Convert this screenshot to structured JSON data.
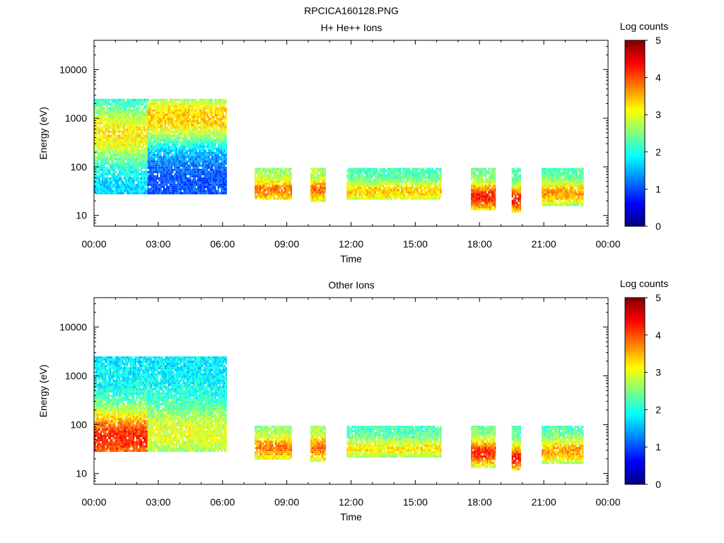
{
  "figure_title": "RPCICA160128.PNG",
  "colorbar": {
    "label": "Log counts",
    "min": 0,
    "max": 5,
    "ticks": [
      "0",
      "1",
      "2",
      "3",
      "4",
      "5"
    ]
  },
  "chart_data": [
    {
      "type": "heatmap",
      "title": "H+ He++ Ions",
      "xlabel": "Time",
      "ylabel": "Energy (eV)",
      "x_ticks": [
        "00:00",
        "03:00",
        "06:00",
        "09:00",
        "12:00",
        "15:00",
        "18:00",
        "21:00",
        "00:00"
      ],
      "xlim_hours": [
        0,
        24
      ],
      "y_ticks": [
        "10",
        "100",
        "1000",
        "10000"
      ],
      "y_scale": "log",
      "ylim": [
        6,
        40000
      ],
      "color_scale": "log counts 0-5 (jet)",
      "blocks": [
        {
          "t_start": 0.0,
          "t_end": 2.5,
          "e_low": 28,
          "e_high": 2500,
          "peak_energy": 500,
          "peak_level": 3.2,
          "base_level": 1.6
        },
        {
          "t_start": 2.5,
          "t_end": 6.2,
          "e_low": 28,
          "e_high": 2500,
          "peak_energy": 1100,
          "peak_level": 3.4,
          "base_level": 1.0
        },
        {
          "t_start": 7.5,
          "t_end": 9.2,
          "e_low": 22,
          "e_high": 95,
          "peak_energy": 35,
          "peak_level": 3.8,
          "base_level": 2.6
        },
        {
          "t_start": 10.1,
          "t_end": 10.8,
          "e_low": 20,
          "e_high": 95,
          "peak_energy": 35,
          "peak_level": 3.8,
          "base_level": 2.6
        },
        {
          "t_start": 11.8,
          "t_end": 16.2,
          "e_low": 22,
          "e_high": 95,
          "peak_energy": 33,
          "peak_level": 3.4,
          "base_level": 2.2
        },
        {
          "t_start": 17.6,
          "t_end": 18.7,
          "e_low": 14,
          "e_high": 95,
          "peak_energy": 25,
          "peak_level": 4.3,
          "base_level": 2.4
        },
        {
          "t_start": 19.5,
          "t_end": 19.9,
          "e_low": 12,
          "e_high": 95,
          "peak_energy": 22,
          "peak_level": 4.3,
          "base_level": 2.2
        },
        {
          "t_start": 20.9,
          "t_end": 22.8,
          "e_low": 16,
          "e_high": 95,
          "peak_energy": 30,
          "peak_level": 3.6,
          "base_level": 2.2
        }
      ]
    },
    {
      "type": "heatmap",
      "title": "Other Ions",
      "xlabel": "Time",
      "ylabel": "Energy (eV)",
      "x_ticks": [
        "00:00",
        "03:00",
        "06:00",
        "09:00",
        "12:00",
        "15:00",
        "18:00",
        "21:00",
        "00:00"
      ],
      "xlim_hours": [
        0,
        24
      ],
      "y_ticks": [
        "10",
        "100",
        "1000",
        "10000"
      ],
      "y_scale": "log",
      "ylim": [
        6,
        40000
      ],
      "color_scale": "log counts 0-5 (jet)",
      "blocks": [
        {
          "t_start": 0.0,
          "t_end": 2.5,
          "e_low": 28,
          "e_high": 2500,
          "peak_energy": 55,
          "peak_level": 4.2,
          "base_level": 1.8
        },
        {
          "t_start": 2.5,
          "t_end": 6.2,
          "e_low": 28,
          "e_high": 2500,
          "peak_energy": 70,
          "peak_level": 3.0,
          "base_level": 1.8
        },
        {
          "t_start": 7.5,
          "t_end": 9.2,
          "e_low": 20,
          "e_high": 95,
          "peak_energy": 35,
          "peak_level": 3.8,
          "base_level": 2.6
        },
        {
          "t_start": 10.1,
          "t_end": 10.8,
          "e_low": 18,
          "e_high": 95,
          "peak_energy": 35,
          "peak_level": 3.8,
          "base_level": 2.6
        },
        {
          "t_start": 11.8,
          "t_end": 16.2,
          "e_low": 22,
          "e_high": 95,
          "peak_energy": 34,
          "peak_level": 3.2,
          "base_level": 2.2
        },
        {
          "t_start": 17.6,
          "t_end": 18.7,
          "e_low": 14,
          "e_high": 95,
          "peak_energy": 28,
          "peak_level": 4.2,
          "base_level": 2.4
        },
        {
          "t_start": 19.5,
          "t_end": 19.9,
          "e_low": 12,
          "e_high": 95,
          "peak_energy": 22,
          "peak_level": 4.3,
          "base_level": 2.2
        },
        {
          "t_start": 20.9,
          "t_end": 22.8,
          "e_low": 16,
          "e_high": 95,
          "peak_energy": 30,
          "peak_level": 3.6,
          "base_level": 2.2
        }
      ]
    }
  ]
}
